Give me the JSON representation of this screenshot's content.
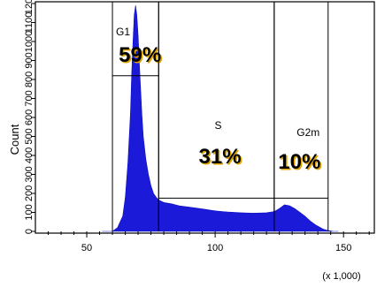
{
  "chart_data": {
    "type": "area",
    "title": "",
    "xlabel": "",
    "ylabel": "Count",
    "x_unit_label": "(x 1,000)",
    "xlim": [
      30,
      162
    ],
    "ylim": [
      0,
      1200
    ],
    "x_ticks": [
      50,
      100,
      150
    ],
    "x_tick_labels": [
      "50",
      "100",
      "150"
    ],
    "y_ticks": [
      0,
      100,
      200,
      300,
      400,
      500,
      600,
      700,
      800,
      900,
      1000,
      1100,
      1200
    ],
    "y_tick_labels": [
      "0",
      "100",
      "200",
      "300",
      "400",
      "500",
      "600",
      "700",
      "800",
      "900",
      "1000",
      "1100",
      "1200"
    ],
    "fill_color": "#1a1ad8",
    "series": [
      {
        "x": [
          56,
          60,
          62,
          64,
          65,
          66,
          67,
          67.5,
          68,
          68.5,
          69,
          69.5,
          70,
          70.5,
          71,
          71.5,
          72,
          73,
          74,
          75,
          76,
          77,
          78,
          80,
          83,
          86,
          90,
          95,
          100,
          105,
          110,
          115,
          120,
          123,
          125,
          127,
          129,
          131,
          133,
          135,
          137,
          139,
          141,
          142,
          143,
          144,
          145,
          146,
          148
        ],
        "y": [
          0,
          0,
          20,
          80,
          180,
          360,
          620,
          830,
          1000,
          1140,
          1190,
          1140,
          1030,
          880,
          740,
          610,
          500,
          380,
          300,
          240,
          200,
          180,
          165,
          152,
          145,
          135,
          128,
          118,
          108,
          102,
          98,
          96,
          98,
          104,
          120,
          140,
          135,
          120,
          100,
          80,
          55,
          35,
          20,
          12,
          8,
          4,
          2,
          0,
          0
        ]
      }
    ],
    "gates": [
      {
        "name": "G1",
        "percent": "59%",
        "x_range": [
          60,
          78
        ],
        "height": 820
      },
      {
        "name": "S",
        "percent": "31%",
        "x_range": [
          78,
          123
        ],
        "height": 175
      },
      {
        "name": "G2m",
        "percent": "10%",
        "x_range": [
          123,
          144
        ],
        "height": 175
      }
    ]
  }
}
